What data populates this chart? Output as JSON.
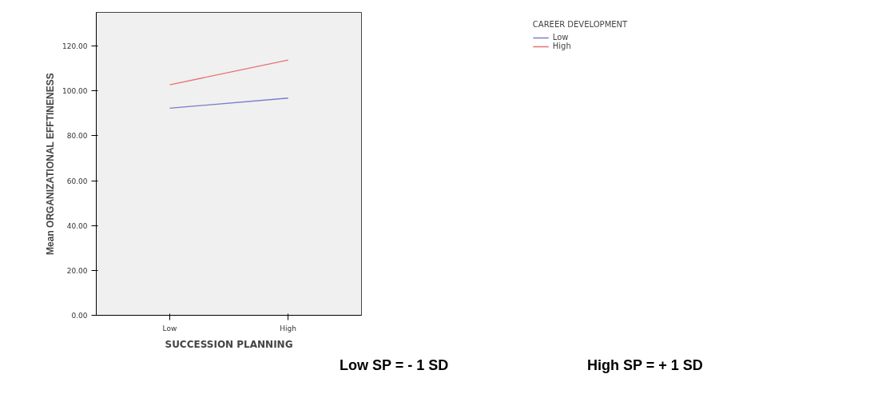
{
  "chart_data": {
    "type": "line",
    "xlabel": "SUCCESSION PLANNING",
    "ylabel": "Mean ORGANIZATIONAL EFFTINENESS",
    "legend_title": "CAREER DEVELOPMENT",
    "categories": [
      "Low",
      "High"
    ],
    "series": [
      {
        "name": "Low",
        "color": "#7b7bcc",
        "values": [
          92.3,
          96.8
        ]
      },
      {
        "name": "High",
        "color": "#e87272",
        "values": [
          102.7,
          113.8
        ]
      }
    ],
    "ylim": [
      0,
      135
    ],
    "yticks": [
      {
        "value": 0,
        "label": "0.00"
      },
      {
        "value": 20,
        "label": "20.00"
      },
      {
        "value": 40,
        "label": "40.00"
      },
      {
        "value": 60,
        "label": "60.00"
      },
      {
        "value": 80,
        "label": "80.00"
      },
      {
        "value": 100,
        "label": "100.00"
      },
      {
        "value": 120,
        "label": "120.00"
      }
    ],
    "grid": false,
    "legend": "top right",
    "marker": "none",
    "line_style": "solid",
    "annotations": [
      "Low SP = - 1 SD",
      "High SP = + 1 SD"
    ]
  }
}
